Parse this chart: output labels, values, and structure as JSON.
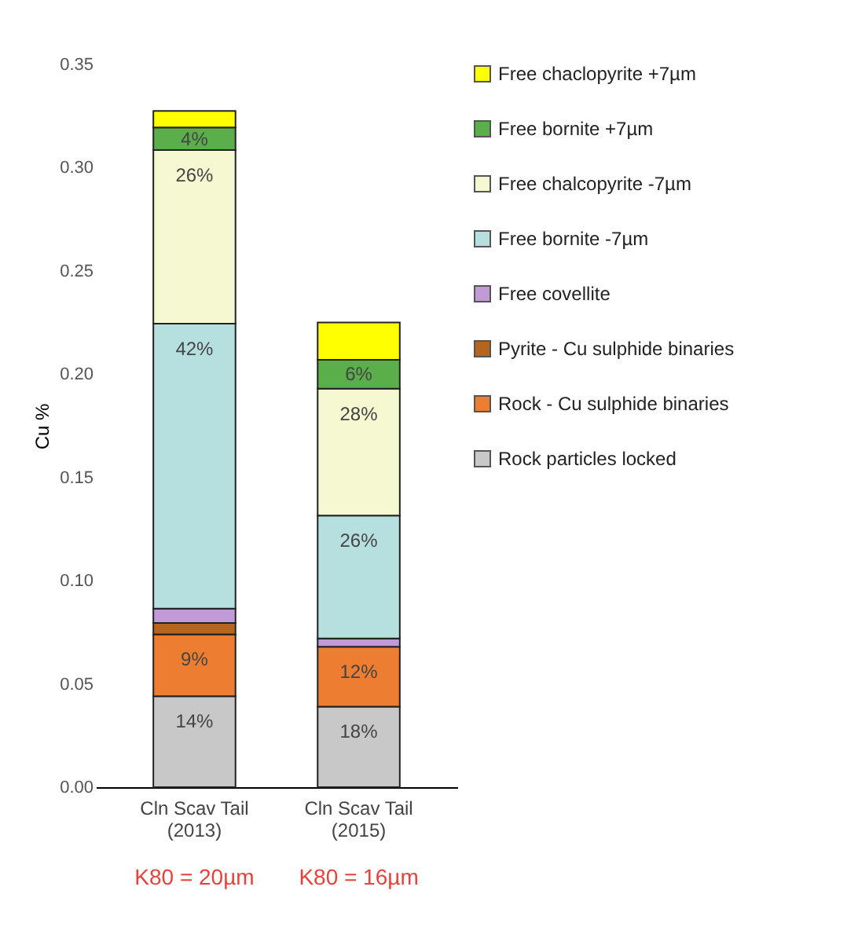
{
  "chart_data": {
    "type": "bar",
    "stacked": true,
    "ylabel": "Cu %",
    "categories": [
      "Cln Scav Tail (2013)",
      "Cln Scav Tail (2015)"
    ],
    "series": [
      {
        "name": "Rock particles locked",
        "color": "#c8c8c8",
        "values": [
          0.044,
          0.039
        ]
      },
      {
        "name": "Rock - Cu sulphide binaries",
        "color": "#ed7d31",
        "values": [
          0.03,
          0.029
        ]
      },
      {
        "name": "Pyrite - Cu sulphide binaries",
        "color": "#b5651d",
        "values": [
          0.0055,
          null
        ]
      },
      {
        "name": "Free covellite",
        "color": "#c39ad8",
        "values": [
          0.007,
          0.004
        ]
      },
      {
        "name": "Free bornite -7µm",
        "color": "#b6dfe0",
        "values": [
          0.138,
          0.0595
        ]
      },
      {
        "name": "Free chalcopyrite -7µm",
        "color": "#f5f8d0",
        "values": [
          0.084,
          0.0615
        ]
      },
      {
        "name": "Free bornite +7µm",
        "color": "#5aaf4a",
        "values": [
          0.011,
          0.014
        ]
      },
      {
        "name": "Free chaclopyrite +7µm",
        "color": "#ffff00",
        "values": [
          0.008,
          0.018
        ]
      }
    ],
    "ylim": [
      0,
      0.35
    ],
    "yticks": [
      {
        "value": 0,
        "label": "0.00"
      },
      0.05,
      {
        "value": 0.1,
        "label": "0.10"
      },
      0.15,
      {
        "value": 0.2,
        "label": "0.20"
      },
      0.25,
      {
        "value": 0.3,
        "label": "0.30"
      },
      0.35
    ],
    "legend": "right",
    "annotations": [
      {
        "text": "14%",
        "x": "Cln Scav Tail (2013)",
        "y": 0.044
      },
      {
        "text": "9%",
        "x": "Cln Scav Tail (2013)",
        "y": 0.074
      },
      {
        "text": "42%",
        "x": "Cln Scav Tail (2013)",
        "y": 0.2245
      },
      {
        "text": "26%",
        "x": "Cln Scav Tail (2013)",
        "y": 0.3085
      },
      {
        "text": "4%",
        "x": "Cln Scav Tail (2013)",
        "y": 0.3195
      },
      {
        "text": "18%",
        "x": "Cln Scav Tail (2015)",
        "y": 0.039
      },
      {
        "text": "12%",
        "x": "Cln Scav Tail (2015)",
        "y": 0.068
      },
      {
        "text": "26%",
        "x": "Cln Scav Tail (2015)",
        "y": 0.1315
      },
      {
        "text": "28%",
        "x": "Cln Scav Tail (2015)",
        "y": 0.193
      },
      {
        "text": "6%",
        "x": "Cln Scav Tail (2015)",
        "y": 0.207
      },
      "K80 = 20µm",
      "K80 = 16µm"
    ]
  }
}
